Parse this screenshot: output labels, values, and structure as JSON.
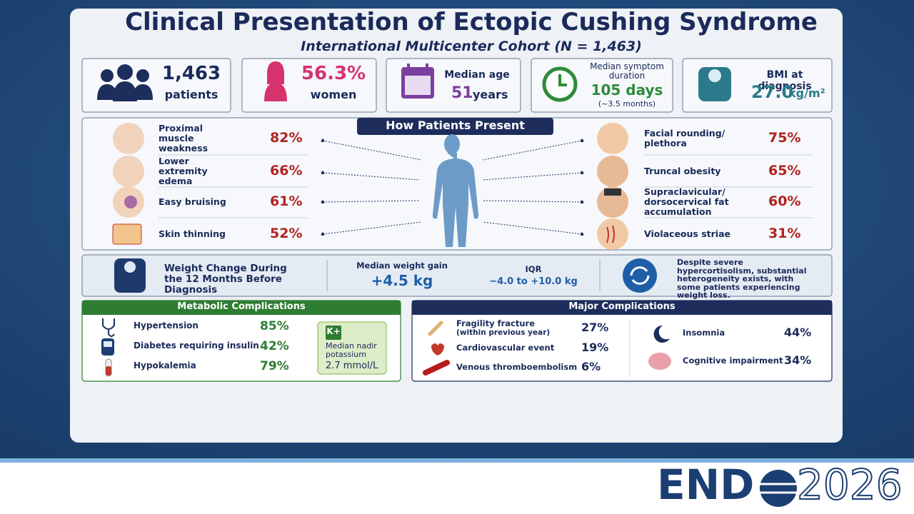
{
  "header": {
    "title": "Clinical Presentation of Ectopic Cushing Syndrome",
    "subtitle": "International Multicenter Cohort (N = 1,463)"
  },
  "stats": [
    {
      "value": "1,463",
      "label": "patients"
    },
    {
      "value": "56.3%",
      "label": "women"
    },
    {
      "label": "Median age",
      "value": "51",
      "unit": "years"
    },
    {
      "label": "Median symptom duration",
      "value": "105 days",
      "note": "(~3.5 months)"
    },
    {
      "label": "BMI at diagnosis",
      "value": "27.0",
      "unit": "kg/m²"
    }
  ],
  "presentation": {
    "title": "How Patients Present",
    "left": [
      {
        "label": "Proximal muscle weakness",
        "value": "82%"
      },
      {
        "label": "Lower extremity edema",
        "value": "66%"
      },
      {
        "label": "Easy bruising",
        "value": "61%"
      },
      {
        "label": "Skin thinning",
        "value": "52%"
      }
    ],
    "right": [
      {
        "label": "Facial rounding/ plethora",
        "value": "75%"
      },
      {
        "label": "Truncal obesity",
        "value": "65%"
      },
      {
        "label": "Supraclavicular/ dorsocervical fat accumulation",
        "value": "60%"
      },
      {
        "label": "Violaceous striae",
        "value": "31%"
      }
    ]
  },
  "weight": {
    "title": "Weight Change During the 12 Months Before Diagnosis",
    "median_label": "Median weight gain",
    "median": "+4.5 kg",
    "iqr_label": "IQR",
    "iqr": "−4.0 to +10.0 kg",
    "note": "Despite severe hypercortisolism, substantial heterogeneity exists, with some patients experiencing weight loss."
  },
  "metabolic": {
    "title": "Metabolic Complications",
    "items": [
      {
        "label": "Hypertension",
        "value": "85%"
      },
      {
        "label": "Diabetes requiring insulin",
        "value": "42%"
      },
      {
        "label": "Hypokalemia",
        "value": "79%"
      }
    ],
    "potassium": {
      "icon": "K+",
      "label": "Median nadir potassium",
      "value": "2.7 mmol/L"
    }
  },
  "major": {
    "title": "Major Complications",
    "left": [
      {
        "label": "Fragility fracture",
        "note": "(within previous year)",
        "value": "27%"
      },
      {
        "label": "Cardiovascular event",
        "value": "19%"
      },
      {
        "label": "Venous thromboembolism",
        "value": "6%"
      }
    ],
    "right": [
      {
        "label": "Insomnia",
        "value": "44%"
      },
      {
        "label": "Cognitive impairment",
        "value": "34%"
      }
    ]
  },
  "footer": {
    "logo_left": "END",
    "logo_right": "2026"
  }
}
